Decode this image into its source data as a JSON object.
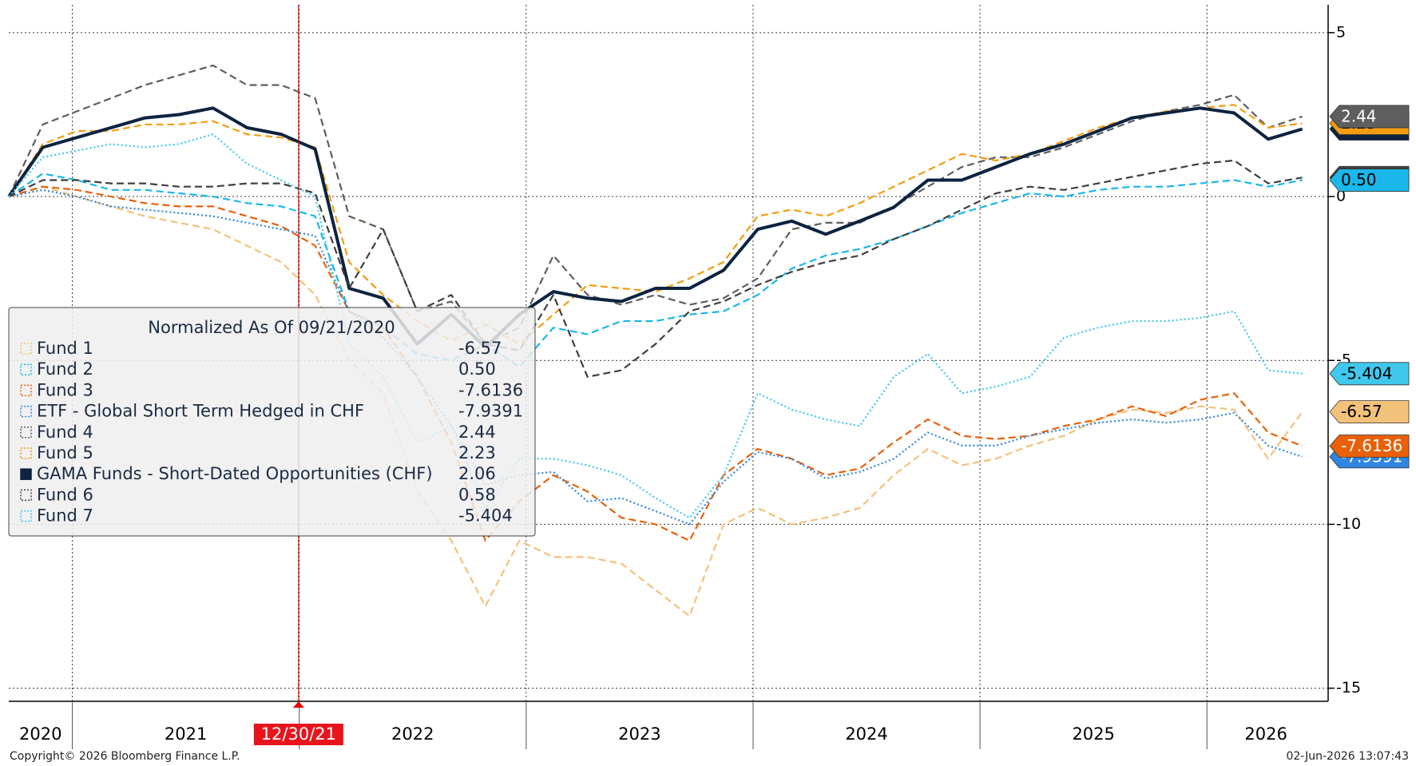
{
  "chart_data": {
    "type": "line",
    "title": "Normalized As Of 09/21/2020",
    "x": [
      2020.72,
      2020.87,
      2021.02,
      2021.17,
      2021.32,
      2021.47,
      2021.62,
      2021.77,
      2021.92,
      2022.07,
      2022.22,
      2022.37,
      2022.52,
      2022.67,
      2022.82,
      2022.97,
      2023.12,
      2023.27,
      2023.42,
      2023.57,
      2023.72,
      2023.87,
      2024.02,
      2024.17,
      2024.32,
      2024.47,
      2024.62,
      2024.77,
      2024.92,
      2025.07,
      2025.22,
      2025.37,
      2025.52,
      2025.67,
      2025.82,
      2025.97,
      2026.12,
      2026.27,
      2026.42
    ],
    "xlim": [
      2020.72,
      2026.52
    ],
    "xticks": [
      2021,
      2022,
      2023,
      2024,
      2025,
      2026
    ],
    "x_labels": [
      "2020",
      "2021",
      "2022",
      "2023",
      "2024",
      "2025",
      "2026"
    ],
    "ylim": [
      -15.4,
      5.85
    ],
    "yticks": [
      5,
      0,
      -5,
      -10,
      -15
    ],
    "grid": true,
    "marker": {
      "x": 2021.997,
      "label": "12/30/21"
    },
    "footer_left": "Copyright© 2026 Bloomberg Finance L.P.",
    "footer_right": "02-Jun-2026 13:07:43",
    "series": [
      {
        "name": "Fund 1",
        "color": "#f3c27a",
        "style": "dash",
        "legend_value": "-6.57",
        "values": [
          0,
          0.3,
          0,
          -0.3,
          -0.6,
          -0.8,
          -1.0,
          -1.5,
          -2.0,
          -3.0,
          -5.0,
          -6.0,
          -9.0,
          -10.5,
          -12.5,
          -10.5,
          -11.0,
          -11.0,
          -11.2,
          -12.0,
          -12.8,
          -10.0,
          -9.5,
          -10.0,
          -9.8,
          -9.5,
          -8.5,
          -7.7,
          -8.2,
          -8.0,
          -7.6,
          -7.3,
          -6.8,
          -6.5,
          -6.6,
          -6.4,
          -6.5,
          -8.0,
          -6.57
        ]
      },
      {
        "name": "Fund 2",
        "color": "#1ab7ea",
        "style": "dash",
        "legend_value": "0.50",
        "values": [
          0,
          0.7,
          0.5,
          0.2,
          0.2,
          0.1,
          0,
          -0.2,
          -0.3,
          -0.6,
          -3.5,
          -4.0,
          -4.8,
          -5.0,
          -4.5,
          -5.2,
          -4.0,
          -4.2,
          -3.8,
          -3.8,
          -3.6,
          -3.5,
          -3.0,
          -2.2,
          -1.8,
          -1.6,
          -1.3,
          -0.9,
          -0.5,
          -0.2,
          0.1,
          0,
          0.2,
          0.3,
          0.3,
          0.4,
          0.5,
          0.3,
          0.5
        ]
      },
      {
        "name": "Fund 3",
        "color": "#e8600a",
        "style": "dash",
        "legend_value": "-7.6136",
        "values": [
          0,
          0.3,
          0.2,
          0,
          -0.2,
          -0.3,
          -0.3,
          -0.6,
          -0.9,
          -1.5,
          -3.5,
          -4.0,
          -5.5,
          -7.5,
          -10.5,
          -9.3,
          -8.5,
          -9.0,
          -9.8,
          -10.0,
          -10.5,
          -8.5,
          -7.7,
          -8.0,
          -8.5,
          -8.3,
          -7.5,
          -6.8,
          -7.3,
          -7.4,
          -7.3,
          -7.0,
          -6.8,
          -6.4,
          -6.7,
          -6.2,
          -6.0,
          -7.2,
          -7.6136
        ]
      },
      {
        "name": "ETF - Global Short Term Hedged in CHF",
        "color": "#2f86e0",
        "style": "dot",
        "legend_value": "-7.9391",
        "values": [
          0,
          0.2,
          0,
          -0.3,
          -0.4,
          -0.5,
          -0.6,
          -0.8,
          -1.0,
          -1.2,
          -3.5,
          -4.3,
          -5.5,
          -7.0,
          -8.8,
          -8.5,
          -8.4,
          -9.3,
          -9.2,
          -9.6,
          -10.0,
          -8.7,
          -7.8,
          -8.0,
          -8.6,
          -8.4,
          -8.0,
          -7.2,
          -7.6,
          -7.6,
          -7.3,
          -7.1,
          -6.9,
          -6.8,
          -6.9,
          -6.8,
          -6.6,
          -7.6,
          -7.9391
        ]
      },
      {
        "name": "Fund 4",
        "color": "#5e5e5e",
        "style": "dash",
        "legend_value": "2.44",
        "values": [
          0,
          2.2,
          2.6,
          3.0,
          3.4,
          3.7,
          4.0,
          3.4,
          3.4,
          3.0,
          -0.6,
          -1.0,
          -3.5,
          -3.2,
          -4.5,
          -4.0,
          -1.8,
          -3.0,
          -3.3,
          -3.0,
          -3.3,
          -3.1,
          -2.5,
          -1.0,
          -0.8,
          -0.8,
          -0.3,
          0.3,
          0.9,
          1.2,
          1.2,
          1.5,
          1.9,
          2.3,
          2.6,
          2.8,
          3.1,
          2.1,
          2.44
        ]
      },
      {
        "name": "Fund 5",
        "color": "#f39c12",
        "style": "dash",
        "legend_value": "2.23",
        "values": [
          0,
          1.6,
          2.0,
          2.0,
          2.2,
          2.2,
          2.3,
          1.9,
          1.8,
          1.5,
          -2.0,
          -3.0,
          -3.8,
          -4.4,
          -3.9,
          -4.5,
          -3.6,
          -2.7,
          -2.8,
          -2.9,
          -2.5,
          -2.0,
          -0.6,
          -0.4,
          -0.6,
          -0.2,
          0.3,
          0.8,
          1.3,
          1.1,
          1.3,
          1.7,
          2.1,
          2.4,
          2.6,
          2.7,
          2.8,
          2.1,
          2.23
        ]
      },
      {
        "name": "GAMA Funds - Short-Dated Opportunities (CHF)",
        "color": "#0d2340",
        "style": "solid",
        "legend_value": "2.06",
        "values": [
          0,
          1.5,
          1.8,
          2.1,
          2.4,
          2.5,
          2.7,
          2.1,
          1.9,
          1.45,
          -2.8,
          -3.1,
          -4.5,
          -3.6,
          -4.6,
          -3.6,
          -2.9,
          -3.1,
          -3.2,
          -2.8,
          -2.8,
          -2.25,
          -1.0,
          -0.75,
          -1.15,
          -0.75,
          -0.33,
          0.5,
          0.5,
          0.9,
          1.3,
          1.6,
          2.0,
          2.4,
          2.55,
          2.7,
          2.55,
          1.75,
          2.06
        ]
      },
      {
        "name": "Fund 6",
        "color": "#3f3f3f",
        "style": "dash",
        "legend_value": "0.58",
        "values": [
          0,
          0.5,
          0.5,
          0.4,
          0.4,
          0.3,
          0.3,
          0.4,
          0.4,
          0.1,
          -2.8,
          -1.0,
          -3.5,
          -3.0,
          -4.5,
          -4.7,
          -3.0,
          -5.5,
          -5.3,
          -4.5,
          -3.5,
          -3.2,
          -2.7,
          -2.3,
          -2.0,
          -1.8,
          -1.3,
          -0.9,
          -0.4,
          0.1,
          0.3,
          0.2,
          0.4,
          0.6,
          0.8,
          1.0,
          1.1,
          0.4,
          0.58
        ]
      },
      {
        "name": "Fund 7",
        "color": "#3fc8ec",
        "style": "dot",
        "legend_value": "-5.404",
        "values": [
          0,
          1.2,
          1.4,
          1.6,
          1.5,
          1.6,
          1.9,
          1.0,
          0.5,
          0,
          -4.5,
          -5.5,
          -7.5,
          -7.0,
          -9.5,
          -8.0,
          -8.0,
          -8.2,
          -8.5,
          -9.2,
          -9.8,
          -8.5,
          -6.0,
          -6.5,
          -6.8,
          -7.0,
          -5.5,
          -4.8,
          -6.0,
          -5.8,
          -5.5,
          -4.3,
          -4.0,
          -3.8,
          -3.8,
          -3.7,
          -3.5,
          -5.3,
          -5.404
        ]
      }
    ]
  }
}
